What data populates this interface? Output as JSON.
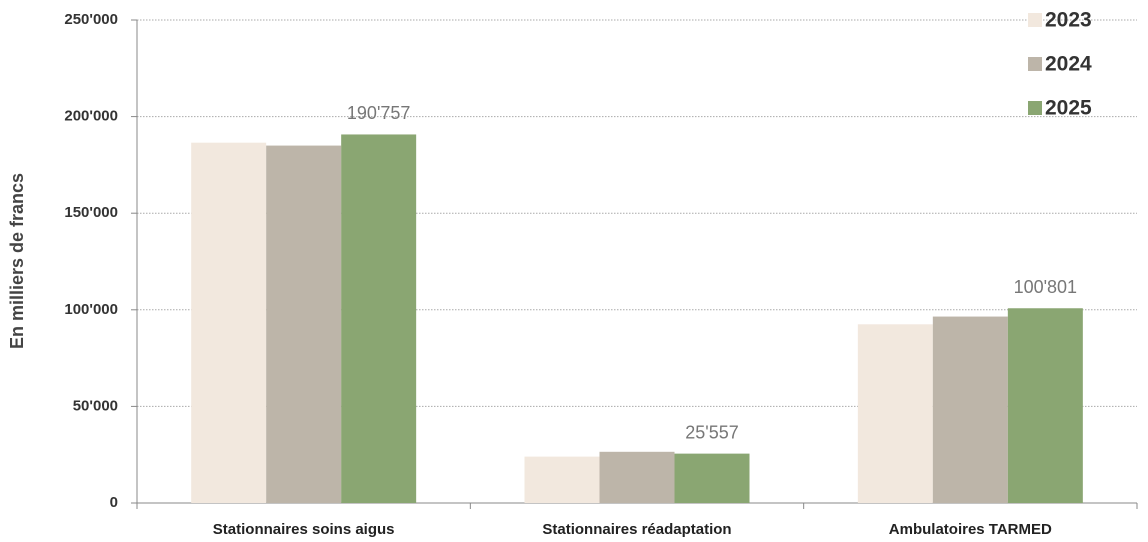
{
  "chart_data": {
    "type": "bar",
    "ylabel": "En milliers de francs",
    "categories": [
      "Stationnaires soins aigus",
      "Stationnaires réadaptation",
      "Ambulatoires TARMED"
    ],
    "series": [
      {
        "name": "2023",
        "color": "#f2e8de",
        "values": [
          186500,
          24000,
          92500
        ]
      },
      {
        "name": "2024",
        "color": "#bdb5a9",
        "values": [
          185000,
          26500,
          96500
        ]
      },
      {
        "name": "2025",
        "color": "#8aa672",
        "values": [
          190757,
          25557,
          100801
        ],
        "value_labels": [
          "190'757",
          "25'557",
          "100'801"
        ]
      }
    ],
    "ylim": [
      0,
      250000
    ],
    "yticks": [
      0,
      {
        "value": 50000,
        "label": "50'000"
      },
      {
        "value": 100000,
        "label": "100'000"
      },
      {
        "value": 150000,
        "label": "150'000"
      },
      {
        "value": 200000,
        "label": "200'000"
      },
      {
        "value": 250000,
        "label": "250'000"
      }
    ],
    "grid": true,
    "legend": "upper right"
  }
}
